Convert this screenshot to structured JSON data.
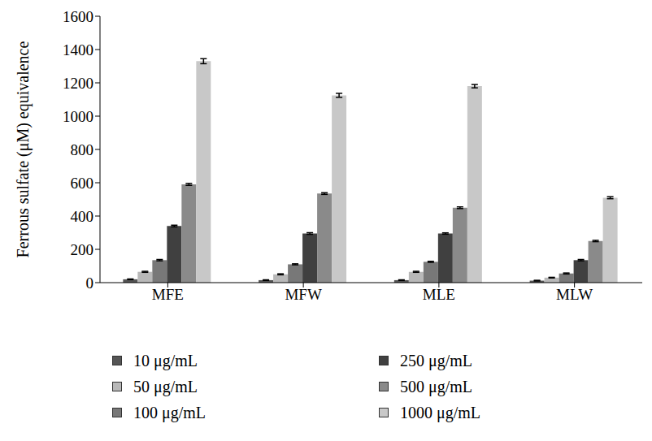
{
  "chart_data": {
    "type": "bar",
    "y_label": "Ferrous sulfate (μM) equivalence",
    "categories": [
      "MFE",
      "MFW",
      "MLE",
      "MLW"
    ],
    "series": [
      {
        "name": "10 μg/mL",
        "color": "#555555",
        "values": [
          20,
          15,
          15,
          12
        ],
        "errors": [
          2,
          2,
          2,
          2
        ]
      },
      {
        "name": "50 μg/mL",
        "color": "#b8b8b8",
        "values": [
          65,
          50,
          65,
          30
        ],
        "errors": [
          3,
          3,
          3,
          2
        ]
      },
      {
        "name": "100 μg/mL",
        "color": "#787878",
        "values": [
          135,
          110,
          125,
          55
        ],
        "errors": [
          4,
          3,
          3,
          3
        ]
      },
      {
        "name": "250 μg/mL",
        "color": "#404040",
        "values": [
          340,
          295,
          295,
          135
        ],
        "errors": [
          5,
          5,
          4,
          4
        ]
      },
      {
        "name": "500 μg/mL",
        "color": "#8a8a8a",
        "values": [
          590,
          535,
          450,
          250
        ],
        "errors": [
          6,
          5,
          5,
          4
        ]
      },
      {
        "name": "1000 μg/mL",
        "color": "#c8c8c8",
        "values": [
          1330,
          1125,
          1180,
          510
        ],
        "errors": [
          15,
          12,
          10,
          6
        ]
      }
    ],
    "ylim": [
      0,
      1600
    ],
    "yticks": [
      0,
      200,
      400,
      600,
      800,
      1000,
      1200,
      1400,
      1600
    ],
    "grid": false,
    "legend": "bottom"
  }
}
